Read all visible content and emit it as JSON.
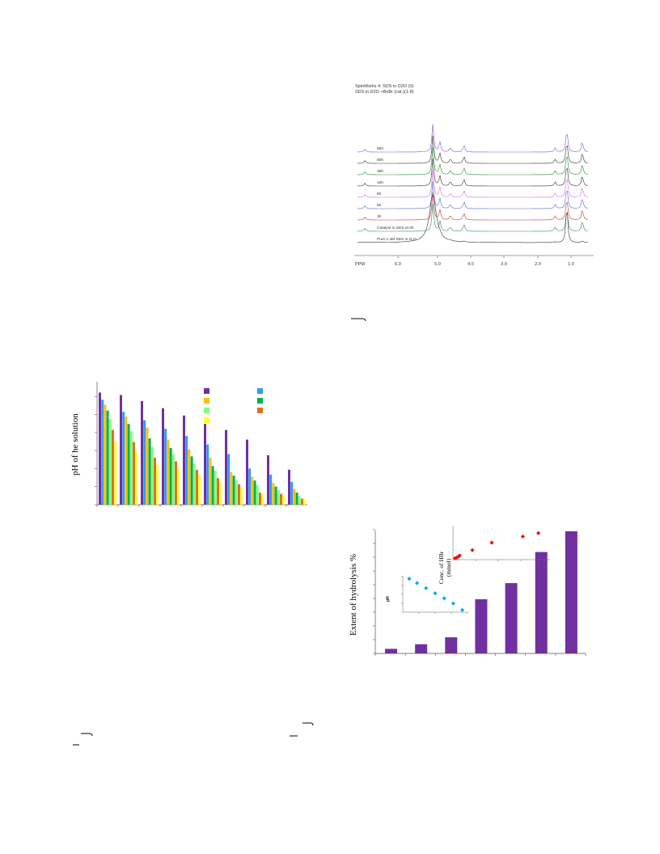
{
  "colors": {
    "purple": "#7030A0",
    "blue": "#3399FF",
    "orange": "#FFC000",
    "green": "#00B050",
    "lightgreen": "#7FFF7F",
    "brown": "#E07020",
    "yellow": "#FFFF33",
    "nmr_purple": "#8855CC",
    "nmr_green": "#228833",
    "nmr_pink": "#DD66DD",
    "nmr_blue": "#5566CC",
    "nmr_red": "#CC3333",
    "nmr_teal": "#338877",
    "scatter_red": "#EE1111",
    "scatter_cyan": "#11AAEE"
  },
  "nmr_figure": {
    "title_line1": "SpinWorks 4: SDS in D2O (0)",
    "title_line2": "SDS in D2O +BnBr (cat.)(1-8)",
    "trace_labels": [
      "80h",
      "60h",
      "36h",
      "16h",
      "8h",
      "5h",
      "3h",
      "Catalyst in SDS at 0h",
      "Pure 1.4M SDS in D₂O"
    ],
    "axis_unit": "PPM",
    "axis_ticks": [
      "6.0",
      "5.0",
      "4.0",
      "3.0",
      "2.0",
      "1.0"
    ]
  },
  "ph_chart": {
    "ylabel": "pH of he solution",
    "chart_data": {
      "type": "bar",
      "groups": 10,
      "series_per_group": 7,
      "values_relative": [
        [
          0.93,
          0.87,
          0.83,
          0.78,
          0.71,
          0.62,
          0.0
        ],
        [
          0.91,
          0.77,
          0.73,
          0.67,
          0.61,
          0.52,
          0.0
        ],
        [
          0.86,
          0.7,
          0.64,
          0.55,
          0.48,
          0.39,
          0.0
        ],
        [
          0.8,
          0.63,
          0.54,
          0.47,
          0.42,
          0.36,
          0.0
        ],
        [
          0.74,
          0.57,
          0.46,
          0.4,
          0.34,
          0.29,
          0.0
        ],
        [
          0.67,
          0.5,
          0.39,
          0.32,
          0.28,
          0.22,
          0.0
        ],
        [
          0.62,
          0.42,
          0.27,
          0.24,
          0.2,
          0.17,
          0.0
        ],
        [
          0.54,
          0.3,
          0.23,
          0.2,
          0.16,
          0.1,
          0.0
        ],
        [
          0.41,
          0.25,
          0.18,
          0.15,
          0.12,
          0.09,
          0.0
        ],
        [
          0.29,
          0.19,
          0.13,
          0.1,
          0.07,
          0.05,
          0.0
        ]
      ]
    }
  },
  "hydrolysis_chart": {
    "ylabel": "Extent of hydrolysis %",
    "chart_data": {
      "type": "bar",
      "values_relative": [
        0.04,
        0.08,
        0.14,
        0.47,
        0.61,
        0.88,
        1.06
      ]
    },
    "inset_top": {
      "ylabel_line1": "Conc. of HBr",
      "ylabel_line2": "(mmol)",
      "chart_data": {
        "type": "scatter",
        "points": [
          [
            0.02,
            0.04
          ],
          [
            0.04,
            0.06
          ],
          [
            0.06,
            0.1
          ],
          [
            0.07,
            0.12
          ],
          [
            0.2,
            0.28
          ],
          [
            0.4,
            0.5
          ],
          [
            0.72,
            0.68
          ],
          [
            0.88,
            0.78
          ]
        ]
      }
    },
    "inset_left": {
      "ylabel": "pH",
      "chart_data": {
        "type": "scatter",
        "points": [
          [
            0.1,
            0.92
          ],
          [
            0.22,
            0.8
          ],
          [
            0.36,
            0.66
          ],
          [
            0.5,
            0.52
          ],
          [
            0.64,
            0.38
          ],
          [
            0.78,
            0.24
          ],
          [
            0.92,
            0.06
          ]
        ]
      }
    }
  }
}
